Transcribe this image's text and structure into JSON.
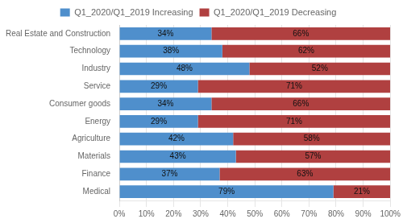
{
  "chart_data": {
    "type": "bar",
    "orientation": "horizontal",
    "stacked": true,
    "categories": [
      "Real Estate and Construction",
      "Technology",
      "Industry",
      "Service",
      "Consumer goods",
      "Energy",
      "Agriculture",
      "Materials",
      "Finance",
      "Medical"
    ],
    "series": [
      {
        "name": "Q1_2020/Q1_2019 Increasing",
        "color": "#4f8fcc",
        "values": [
          34,
          38,
          48,
          29,
          34,
          29,
          42,
          43,
          37,
          79
        ],
        "value_labels": [
          "34%",
          "38%",
          "48%",
          "29%",
          "34%",
          "29%",
          "42%",
          "43%",
          "37%",
          "79%"
        ]
      },
      {
        "name": "Q1_2020/Q1_2019 Decreasing",
        "color": "#b04040",
        "values": [
          66,
          62,
          52,
          71,
          66,
          71,
          58,
          57,
          63,
          21
        ],
        "value_labels": [
          "66%",
          "62%",
          "52%",
          "71%",
          "66%",
          "71%",
          "58%",
          "57%",
          "63%",
          "21%"
        ]
      }
    ],
    "xlim": [
      0,
      100
    ],
    "xticks": [
      {
        "value": 0,
        "label": "0%"
      },
      {
        "value": 10,
        "label": "10%"
      },
      {
        "value": 20,
        "label": "20%"
      },
      {
        "value": 30,
        "label": "30%"
      },
      {
        "value": 40,
        "label": "40%"
      },
      {
        "value": 50,
        "label": "50%"
      },
      {
        "value": 60,
        "label": "60%"
      },
      {
        "value": 70,
        "label": "70%"
      },
      {
        "value": 80,
        "label": "80%"
      },
      {
        "value": 90,
        "label": "90%"
      },
      {
        "value": 100,
        "label": "100%"
      }
    ],
    "grid": true,
    "legend": "top",
    "data_labels": true
  }
}
